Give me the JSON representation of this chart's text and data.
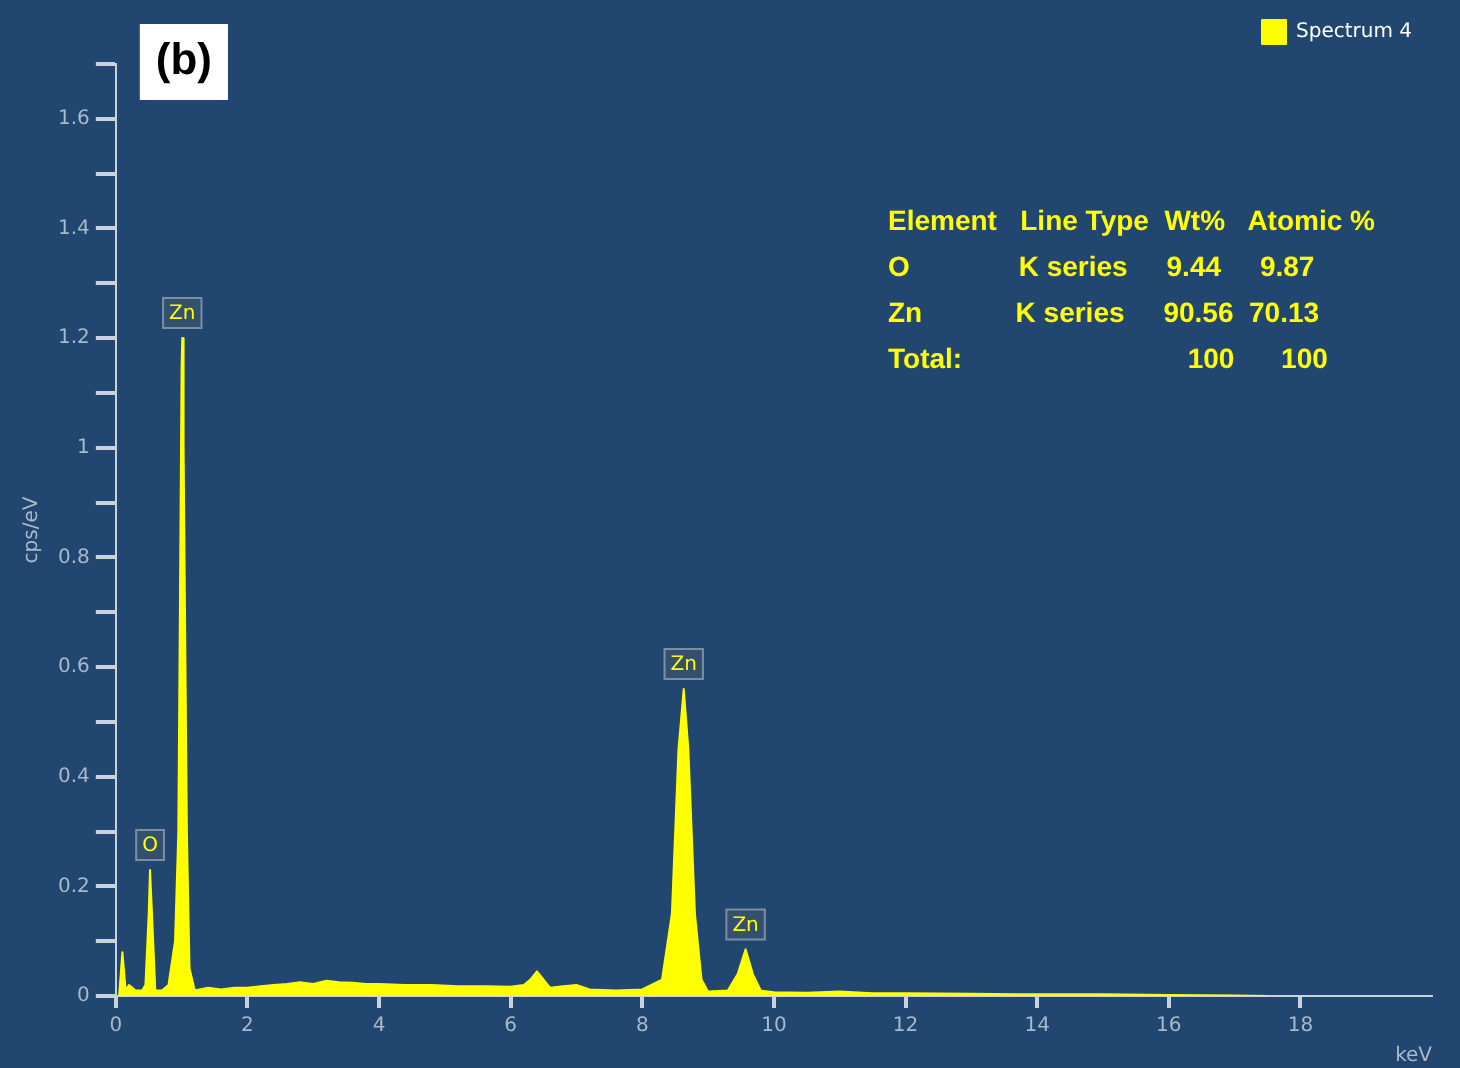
{
  "chart_data": {
    "type": "area",
    "ylabel": "cps/eV",
    "xlabel": "keV",
    "legend": "top right",
    "grid": false,
    "marker": "none",
    "xlim": [
      0,
      20
    ],
    "xticks": [
      0,
      2,
      4,
      6,
      8,
      10,
      12,
      14,
      16,
      18
    ],
    "ylim": [
      0,
      1.7
    ],
    "yticks": [
      0,
      {
        "value": 0.1,
        "label": null
      },
      0.2,
      {
        "value": 0.3,
        "label": null
      },
      0.4,
      {
        "value": 0.5,
        "label": null
      },
      0.6,
      {
        "value": 0.7,
        "label": null
      },
      0.8,
      {
        "value": 0.9,
        "label": null
      },
      1,
      {
        "value": 1.1,
        "label": null
      },
      1.2,
      {
        "value": 1.3,
        "label": null
      },
      1.4,
      {
        "value": 1.5,
        "label": null
      },
      1.6,
      {
        "value": 1.7,
        "label": null
      }
    ],
    "series": [
      {
        "name": "Spectrum 4",
        "color": "#ffff00",
        "x": [
          0.05,
          0.1,
          0.15,
          0.2,
          0.3,
          0.4,
          0.45,
          0.5,
          0.52,
          0.55,
          0.6,
          0.7,
          0.8,
          0.9,
          0.95,
          1.0,
          1.01,
          1.03,
          1.08,
          1.12,
          1.2,
          1.4,
          1.6,
          1.8,
          2.0,
          2.2,
          2.4,
          2.6,
          2.8,
          3.0,
          3.2,
          3.4,
          3.6,
          3.8,
          4.0,
          4.4,
          4.8,
          5.2,
          5.6,
          6.0,
          6.2,
          6.3,
          6.4,
          6.5,
          6.6,
          6.8,
          7.0,
          7.2,
          7.6,
          8.0,
          8.3,
          8.45,
          8.55,
          8.63,
          8.7,
          8.8,
          8.9,
          9.0,
          9.3,
          9.45,
          9.57,
          9.68,
          9.8,
          10,
          10.5,
          11,
          11.5,
          12,
          13,
          14,
          15,
          16,
          17,
          17.5
        ],
        "values": [
          0.0,
          0.08,
          0.01,
          0.02,
          0.01,
          0.01,
          0.02,
          0.15,
          0.23,
          0.15,
          0.01,
          0.01,
          0.02,
          0.1,
          0.3,
          1.15,
          1.2,
          1.0,
          0.3,
          0.05,
          0.01,
          0.015,
          0.012,
          0.015,
          0.015,
          0.018,
          0.02,
          0.022,
          0.025,
          0.022,
          0.028,
          0.025,
          0.024,
          0.022,
          0.022,
          0.02,
          0.02,
          0.018,
          0.018,
          0.017,
          0.02,
          0.03,
          0.045,
          0.03,
          0.015,
          0.018,
          0.02,
          0.012,
          0.01,
          0.012,
          0.03,
          0.15,
          0.45,
          0.56,
          0.45,
          0.15,
          0.03,
          0.008,
          0.01,
          0.04,
          0.085,
          0.04,
          0.01,
          0.007,
          0.006,
          0.008,
          0.005,
          0.005,
          0.004,
          0.003,
          0.003,
          0.002,
          0.001,
          0.0
        ]
      }
    ],
    "annotations": [
      "(b)",
      "Element   Line Type  Wt%   Atomic %",
      "O              K series     9.44     9.87",
      "Zn            K series     90.56  70.13",
      "Total:                             100      100",
      {
        "text": "O",
        "x": 0.52,
        "y": 0.23
      },
      {
        "text": "Zn",
        "x": 1.01,
        "y": 1.2
      },
      {
        "text": "Zn",
        "x": 8.63,
        "y": 0.56
      },
      {
        "text": "Zn",
        "x": 9.57,
        "y": 0.085
      }
    ]
  }
}
